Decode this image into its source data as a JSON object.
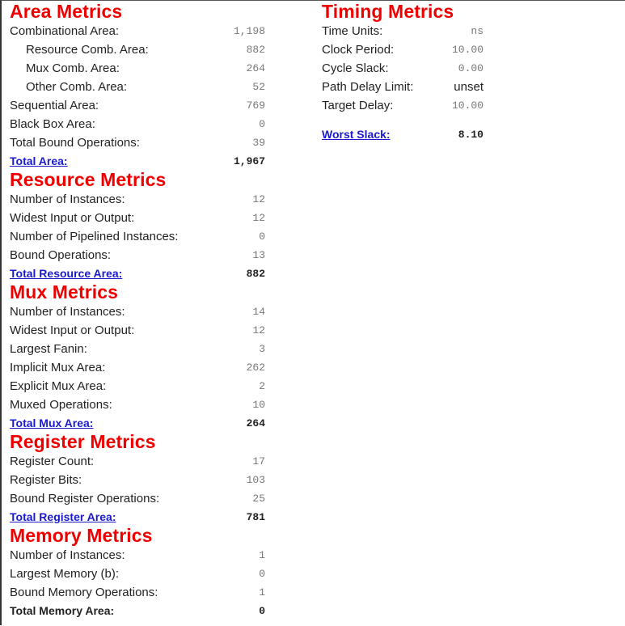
{
  "area": {
    "title": "Area Metrics",
    "rows": [
      {
        "label": "Combinational Area:",
        "value": "1,198"
      },
      {
        "label": "Resource Comb. Area:",
        "value": "882"
      },
      {
        "label": "Mux Comb. Area:",
        "value": "264"
      },
      {
        "label": "Other Comb. Area:",
        "value": "52"
      },
      {
        "label": "Sequential Area:",
        "value": "769"
      },
      {
        "label": "Black Box Area:",
        "value": "0"
      },
      {
        "label": "Total Bound Operations:",
        "value": "39"
      }
    ],
    "total": {
      "label": "Total Area:",
      "value": "1,967"
    }
  },
  "resource": {
    "title": "Resource Metrics",
    "rows": [
      {
        "label": "Number of Instances:",
        "value": "12"
      },
      {
        "label": "Widest Input or Output:",
        "value": "12"
      },
      {
        "label": "Number of Pipelined Instances:",
        "value": "0"
      },
      {
        "label": "Bound Operations:",
        "value": "13"
      }
    ],
    "total": {
      "label": "Total Resource Area:",
      "value": "882"
    }
  },
  "mux": {
    "title": "Mux Metrics",
    "rows": [
      {
        "label": "Number of Instances:",
        "value": "14"
      },
      {
        "label": "Widest Input or Output:",
        "value": "12"
      },
      {
        "label": "Largest Fanin:",
        "value": "3"
      },
      {
        "label": "Implicit Mux Area:",
        "value": "262"
      },
      {
        "label": "Explicit Mux Area:",
        "value": "2"
      },
      {
        "label": "Muxed Operations:",
        "value": "10"
      }
    ],
    "total": {
      "label": "Total Mux Area:",
      "value": "264"
    }
  },
  "register": {
    "title": "Register Metrics",
    "rows": [
      {
        "label": "Register Count:",
        "value": "17"
      },
      {
        "label": "Register Bits:",
        "value": "103"
      },
      {
        "label": "Bound Register Operations:",
        "value": "25"
      }
    ],
    "total": {
      "label": "Total Register Area:",
      "value": "781"
    }
  },
  "memory": {
    "title": "Memory Metrics",
    "rows": [
      {
        "label": "Number of Instances:",
        "value": "1"
      },
      {
        "label": "Largest Memory (b):",
        "value": "0"
      },
      {
        "label": "Bound Memory Operations:",
        "value": "1"
      }
    ],
    "total": {
      "label": "Total Memory Area:",
      "value": "0"
    }
  },
  "timing": {
    "title": "Timing Metrics",
    "rows": [
      {
        "label": "Time Units:",
        "value": "ns"
      },
      {
        "label": "Clock Period:",
        "value": "10.00"
      },
      {
        "label": "Cycle Slack:",
        "value": "0.00"
      },
      {
        "label": "Path Delay Limit:",
        "value": "unset"
      },
      {
        "label": "Target Delay:",
        "value": "10.00"
      }
    ],
    "worst": {
      "label": "Worst Slack:",
      "value": "8.10"
    }
  },
  "colors": {
    "heading": "#ee0000",
    "link": "#1a1acc"
  }
}
